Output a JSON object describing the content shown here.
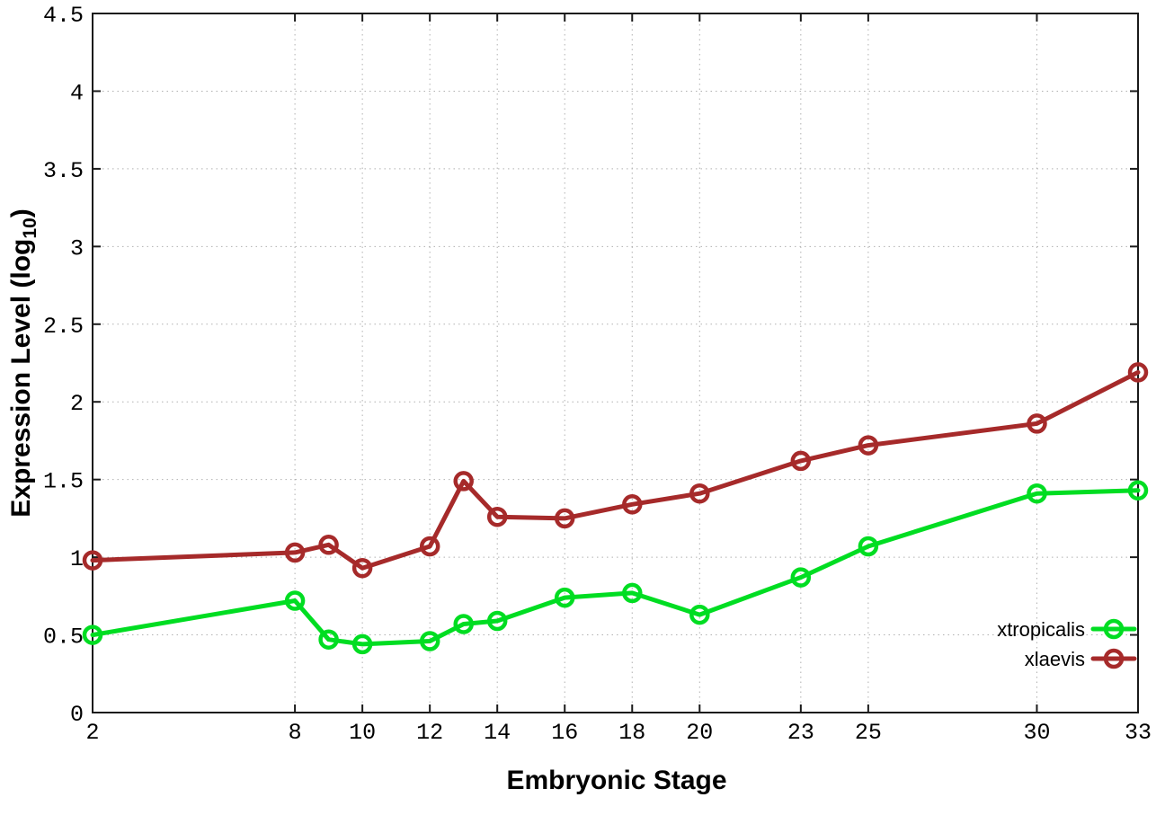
{
  "chart_data": {
    "type": "line",
    "title": "",
    "xlabel": "Embryonic Stage",
    "ylabel": "Expression Level (log10)",
    "ylabel_parts": {
      "main": "Expression Level (log",
      "sub": "10",
      "close": ")"
    },
    "xlim": [
      2,
      33
    ],
    "ylim": [
      0,
      4.5
    ],
    "grid": true,
    "legend_position": "bottom-right-inside",
    "x": [
      2,
      8,
      9,
      10,
      12,
      13,
      14,
      16,
      18,
      20,
      23,
      25,
      30,
      33
    ],
    "xtick_values": [
      2,
      8,
      10,
      12,
      14,
      16,
      18,
      20,
      23,
      25,
      30,
      33
    ],
    "xtick_labels": [
      "2",
      "8",
      "10",
      "12",
      "14",
      "16",
      "18",
      "20",
      "23",
      "25",
      "30",
      "33"
    ],
    "ytick_values": [
      0,
      0.5,
      1,
      1.5,
      2,
      2.5,
      3,
      3.5,
      4,
      4.5
    ],
    "ytick_labels": [
      "0",
      "0.5",
      "1",
      "1.5",
      "2",
      "2.5",
      "3",
      "3.5",
      "4",
      "4.5"
    ],
    "series": [
      {
        "name": "xtropicalis",
        "color": "#00dd22",
        "values": [
          0.5,
          0.72,
          0.47,
          0.44,
          0.46,
          0.57,
          0.59,
          0.74,
          0.77,
          0.63,
          0.87,
          1.07,
          1.41,
          1.43
        ]
      },
      {
        "name": "xlaevis",
        "color": "#a62a2a",
        "values": [
          0.98,
          1.03,
          1.08,
          0.93,
          1.07,
          1.49,
          1.26,
          1.25,
          1.34,
          1.41,
          1.62,
          1.72,
          1.86,
          2.19
        ]
      }
    ],
    "style": {
      "grid_color": "#b0b0b0",
      "axis_color": "#1a1a1a",
      "background": "#ffffff",
      "line_width": 5,
      "marker_radius": 9,
      "marker_stroke": 4.5
    }
  }
}
